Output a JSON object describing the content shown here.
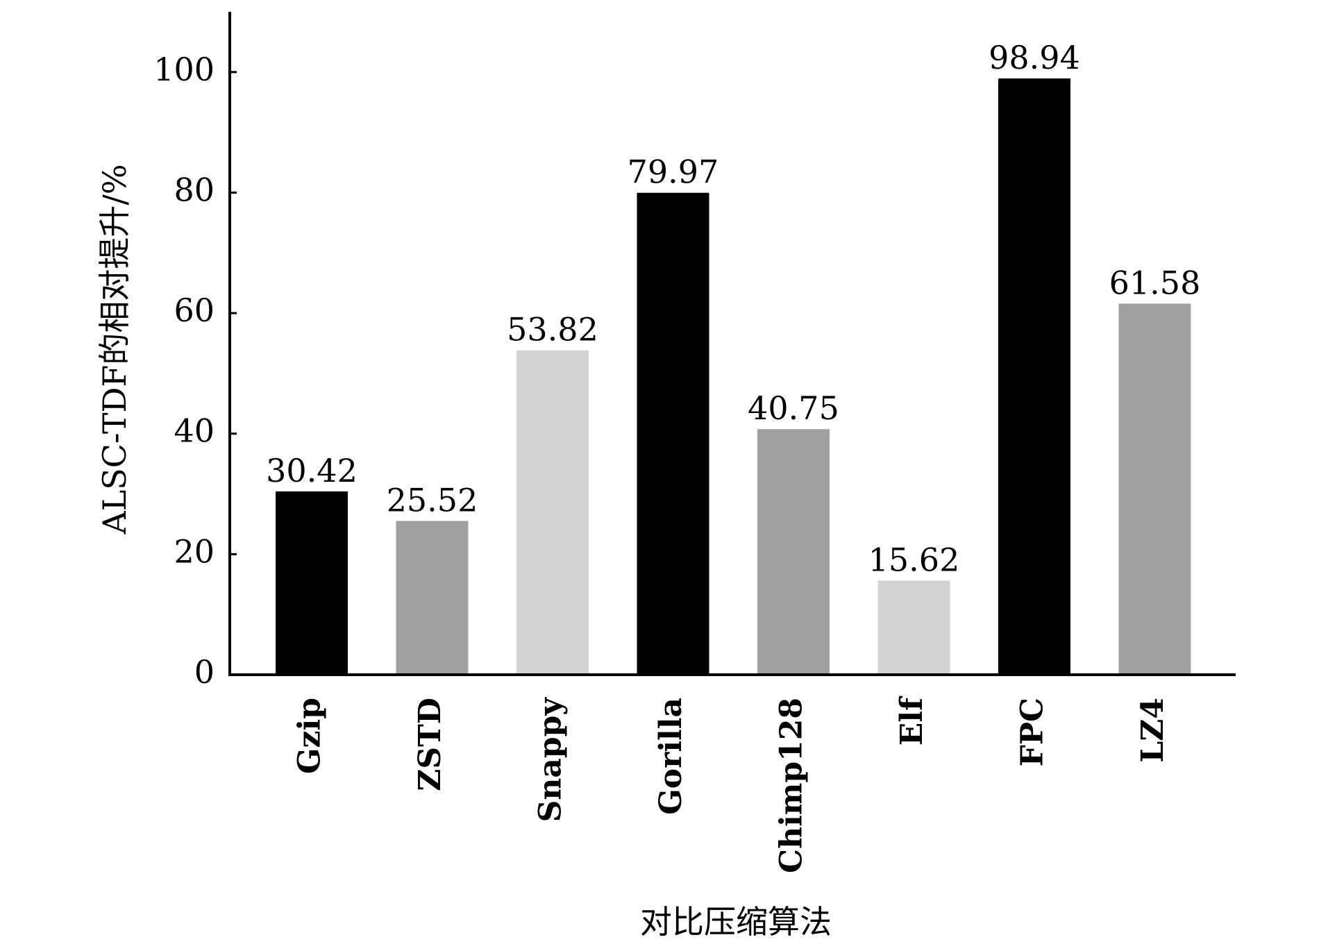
{
  "chart_data": {
    "type": "bar",
    "xlabel": "对比压缩算法",
    "ylabel": "ALSC-TDF的相对提升/%",
    "categories": [
      "Gzip",
      "ZSTD",
      "Snappy",
      "Gorilla",
      "Chimp128",
      "Elf",
      "FPC",
      "LZ4"
    ],
    "values": [
      30.42,
      25.52,
      53.82,
      79.97,
      40.75,
      15.62,
      98.94,
      61.58
    ],
    "colors": [
      "#000000",
      "#a0a0a0",
      "#d3d3d3",
      "#000000",
      "#a0a0a0",
      "#d3d3d3",
      "#000000",
      "#a0a0a0"
    ],
    "ylim": [
      0,
      110
    ],
    "yticks": [
      0,
      20,
      40,
      60,
      80,
      100
    ],
    "grid": false
  }
}
